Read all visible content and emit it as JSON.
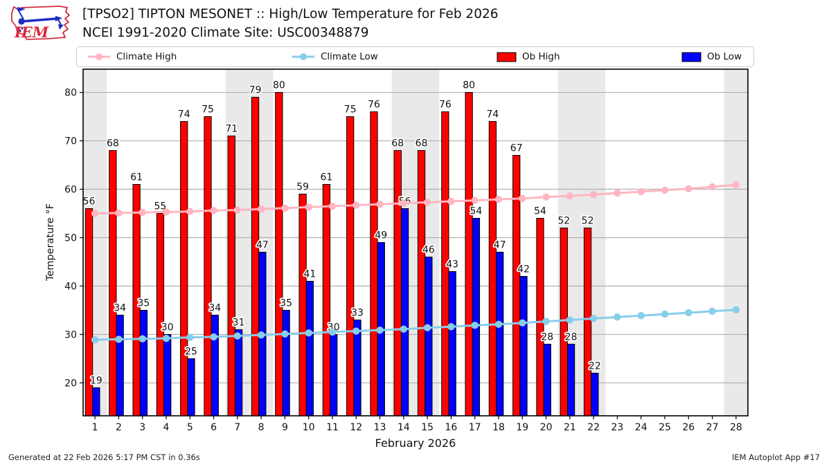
{
  "header": {
    "title_line1": "[TPSO2] TIPTON MESONET :: High/Low Temperature for Feb 2026",
    "title_line2": "NCEI 1991-2020 Climate Site: USC00348879",
    "logo_text": "IEM"
  },
  "legend": {
    "items": [
      {
        "label": "Climate High",
        "type": "line",
        "color": "#ffb6c1"
      },
      {
        "label": "Climate Low",
        "type": "line",
        "color": "#87ceeb"
      },
      {
        "label": "Ob High",
        "type": "patch",
        "color": "#ff0000"
      },
      {
        "label": "Ob Low",
        "type": "patch",
        "color": "#0000ff"
      }
    ]
  },
  "chart_data": {
    "type": "bar",
    "title": "[TPSO2] TIPTON MESONET :: High/Low Temperature for Feb 2026",
    "subtitle": "NCEI 1991-2020 Climate Site: USC00348879",
    "xlabel": "February 2026",
    "ylabel": "Temperature °F",
    "x": [
      1,
      2,
      3,
      4,
      5,
      6,
      7,
      8,
      9,
      10,
      11,
      12,
      13,
      14,
      15,
      16,
      17,
      18,
      19,
      20,
      21,
      22,
      23,
      24,
      25,
      26,
      27,
      28
    ],
    "xlim": [
      0.5,
      28.5
    ],
    "ylim": [
      13.2,
      84.8
    ],
    "yticks": [
      20,
      30,
      40,
      50,
      60,
      70,
      80
    ],
    "grid": "horizontal",
    "legend_position": "top",
    "weekend_bands": [
      [
        0.5,
        1.5
      ],
      [
        6.5,
        8.5
      ],
      [
        13.5,
        15.5
      ],
      [
        20.5,
        22.5
      ],
      [
        27.5,
        28.5
      ]
    ],
    "band_color": "#e9e9e9",
    "grid_color": "#b0b0b0",
    "series": [
      {
        "name": "Ob High",
        "type": "bar",
        "color": "#ff0000",
        "values": [
          56,
          68,
          61,
          55,
          74,
          75,
          71,
          79,
          80,
          59,
          61,
          75,
          76,
          68,
          68,
          76,
          80,
          74,
          67,
          54,
          52,
          52,
          null,
          null,
          null,
          null,
          null,
          null
        ]
      },
      {
        "name": "Ob Low",
        "type": "bar",
        "color": "#0000ff",
        "values": [
          19,
          34,
          35,
          30,
          25,
          34,
          31,
          47,
          35,
          41,
          30,
          33,
          49,
          56,
          46,
          43,
          54,
          47,
          42,
          28,
          28,
          22,
          null,
          null,
          null,
          null,
          null,
          null
        ]
      },
      {
        "name": "Climate High",
        "type": "line",
        "color": "#ffb6c1",
        "values": [
          55.0,
          55.1,
          55.2,
          55.3,
          55.4,
          55.6,
          55.7,
          55.9,
          56.1,
          56.3,
          56.5,
          56.7,
          56.9,
          57.1,
          57.3,
          57.5,
          57.7,
          57.9,
          58.1,
          58.4,
          58.6,
          58.9,
          59.2,
          59.5,
          59.8,
          60.1,
          60.5,
          60.9
        ]
      },
      {
        "name": "Climate Low",
        "type": "line",
        "color": "#87ceeb",
        "values": [
          28.9,
          29.0,
          29.1,
          29.2,
          29.4,
          29.5,
          29.7,
          29.9,
          30.1,
          30.3,
          30.5,
          30.7,
          30.9,
          31.1,
          31.4,
          31.6,
          31.9,
          32.1,
          32.4,
          32.7,
          33.0,
          33.3,
          33.6,
          33.9,
          34.2,
          34.5,
          34.8,
          35.1
        ]
      }
    ]
  },
  "footer": {
    "left": "Generated at 22 Feb 2026 5:17 PM CST in 0.36s",
    "right": "IEM Autoplot App #17"
  }
}
